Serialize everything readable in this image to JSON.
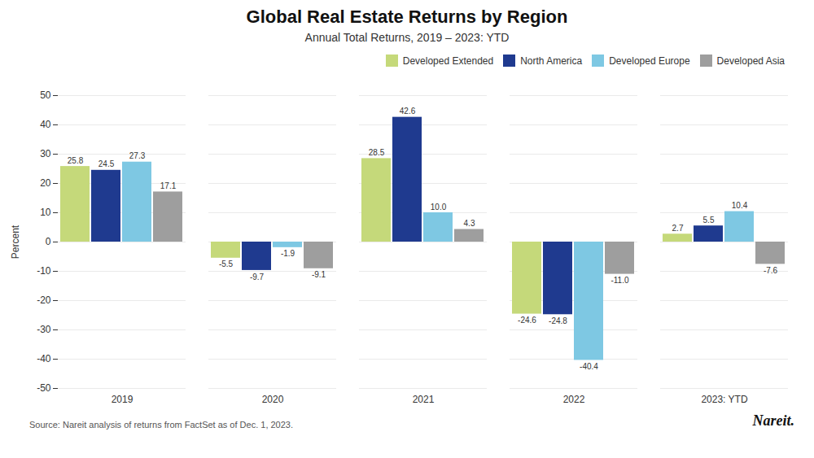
{
  "chart_data": {
    "type": "bar",
    "title": "Global Real Estate Returns by Region",
    "subtitle": "Annual Total Returns, 2019 – 2023: YTD",
    "categories": [
      "2019",
      "2020",
      "2021",
      "2022",
      "2023: YTD"
    ],
    "series": [
      {
        "name": "Developed Extended",
        "color": "#c5d97a",
        "values": [
          25.8,
          -5.5,
          28.5,
          -24.6,
          2.7
        ]
      },
      {
        "name": "North America",
        "color": "#1f3a8f",
        "values": [
          24.5,
          -9.7,
          42.6,
          -24.8,
          5.5
        ]
      },
      {
        "name": "Developed Europe",
        "color": "#7ec8e3",
        "values": [
          27.3,
          -1.9,
          10.0,
          -40.4,
          10.4
        ],
        "value_labels": [
          "27.3",
          "-1.9",
          "10.0",
          "-40.4",
          "10.4"
        ]
      },
      {
        "name": "Developed Asia",
        "color": "#9e9e9e",
        "values": [
          17.1,
          -9.1,
          4.3,
          -11.0,
          -7.6
        ],
        "value_labels": [
          "17.1",
          "-9.1",
          "4.3",
          "-11.0",
          "-7.6"
        ]
      }
    ],
    "ylabel": "Percent",
    "ylim": [
      -50,
      50
    ],
    "yticks": [
      -50,
      -40,
      -30,
      -20,
      -10,
      0,
      10,
      20,
      30,
      40,
      50
    ],
    "grid": true,
    "legend": "upper right",
    "data_labels": true,
    "annotations": [
      "Source: Nareit analysis of returns from FactSet as of Dec. 1, 2023.",
      "Nareit."
    ]
  }
}
